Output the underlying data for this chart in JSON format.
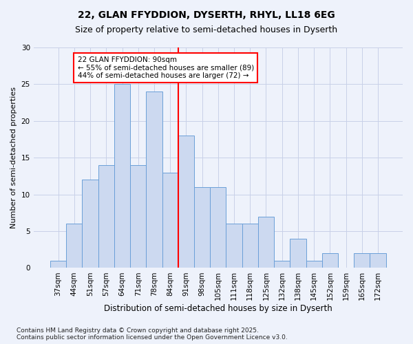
{
  "title": "22, GLAN FFYDDION, DYSERTH, RHYL, LL18 6EG",
  "subtitle": "Size of property relative to semi-detached houses in Dyserth",
  "xlabel": "Distribution of semi-detached houses by size in Dyserth",
  "ylabel": "Number of semi-detached properties",
  "categories": [
    "37sqm",
    "44sqm",
    "51sqm",
    "57sqm",
    "64sqm",
    "71sqm",
    "78sqm",
    "84sqm",
    "91sqm",
    "98sqm",
    "105sqm",
    "111sqm",
    "118sqm",
    "125sqm",
    "132sqm",
    "138sqm",
    "145sqm",
    "152sqm",
    "159sqm",
    "165sqm",
    "172sqm"
  ],
  "values": [
    1,
    6,
    12,
    14,
    25,
    14,
    24,
    13,
    18,
    11,
    11,
    6,
    6,
    7,
    1,
    4,
    1,
    2,
    0,
    2,
    2
  ],
  "bar_color": "#ccd9f0",
  "bar_edge_color": "#6a9fd8",
  "vline_x_index": 8,
  "vline_color": "red",
  "annotation_text": "22 GLAN FFYDDION: 90sqm\n← 55% of semi-detached houses are smaller (89)\n44% of semi-detached houses are larger (72) →",
  "ylim": [
    0,
    30
  ],
  "yticks": [
    0,
    5,
    10,
    15,
    20,
    25,
    30
  ],
  "grid_color": "#c8d0e8",
  "background_color": "#eef2fb",
  "footer_text": "Contains HM Land Registry data © Crown copyright and database right 2025.\nContains public sector information licensed under the Open Government Licence v3.0.",
  "title_fontsize": 10,
  "subtitle_fontsize": 9,
  "xlabel_fontsize": 8.5,
  "ylabel_fontsize": 8,
  "tick_fontsize": 7.5,
  "footer_fontsize": 6.5,
  "annot_fontsize": 7.5
}
